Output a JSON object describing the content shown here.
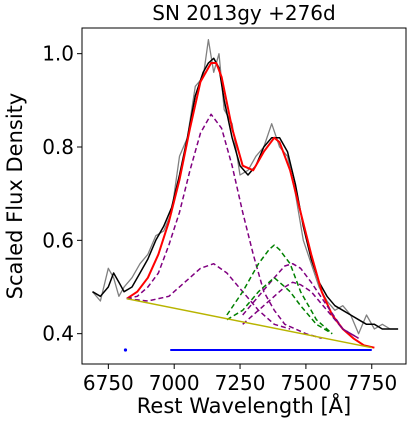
{
  "chart_data": {
    "type": "line",
    "title": "SN 2013gy  +276d",
    "xlabel": "Rest Wavelength [Å]",
    "ylabel": "Scaled Flux Density",
    "xlim": [
      6650,
      7880
    ],
    "ylim": [
      0.335,
      1.055
    ],
    "x_ticks": [
      6750,
      7000,
      7250,
      7500,
      7750
    ],
    "y_ticks": [
      0.4,
      0.6,
      0.8,
      1.0
    ],
    "x_tick_labels": [
      "6750",
      "7000",
      "7250",
      "7500",
      "7750"
    ],
    "y_tick_labels": [
      "0.4",
      "0.6",
      "0.8",
      "1.0"
    ],
    "grid": false,
    "series": [
      {
        "role": "observed spectrum (raw)",
        "color": "#808080",
        "x": [
          6690,
          6720,
          6750,
          6770,
          6790,
          6810,
          6840,
          6870,
          6900,
          6930,
          6960,
          6990,
          7020,
          7050,
          7080,
          7110,
          7130,
          7150,
          7170,
          7190,
          7220,
          7250,
          7280,
          7310,
          7340,
          7370,
          7400,
          7430,
          7460,
          7490,
          7520,
          7550,
          7580,
          7610,
          7640,
          7670,
          7700,
          7730,
          7760,
          7790,
          7820,
          7850
        ],
        "y": [
          0.49,
          0.47,
          0.54,
          0.52,
          0.48,
          0.5,
          0.52,
          0.55,
          0.57,
          0.61,
          0.62,
          0.66,
          0.78,
          0.82,
          0.93,
          0.95,
          1.03,
          0.96,
          1.0,
          0.88,
          0.85,
          0.74,
          0.75,
          0.78,
          0.8,
          0.85,
          0.8,
          0.78,
          0.7,
          0.6,
          0.55,
          0.5,
          0.47,
          0.45,
          0.46,
          0.44,
          0.4,
          0.44,
          0.41,
          0.42,
          0.41,
          0.41
        ]
      },
      {
        "role": "observed spectrum (smoothed)",
        "color": "#000000",
        "x": [
          6690,
          6720,
          6750,
          6770,
          6790,
          6810,
          6840,
          6870,
          6900,
          6930,
          6960,
          6990,
          7020,
          7050,
          7080,
          7110,
          7130,
          7150,
          7170,
          7190,
          7220,
          7250,
          7280,
          7310,
          7340,
          7370,
          7400,
          7430,
          7460,
          7490,
          7520,
          7550,
          7580,
          7610,
          7640,
          7670,
          7700,
          7730,
          7760,
          7790,
          7820,
          7850
        ],
        "y": [
          0.49,
          0.48,
          0.5,
          0.53,
          0.51,
          0.49,
          0.5,
          0.53,
          0.56,
          0.6,
          0.63,
          0.67,
          0.74,
          0.82,
          0.91,
          0.96,
          0.98,
          0.99,
          0.97,
          0.9,
          0.82,
          0.76,
          0.74,
          0.76,
          0.8,
          0.82,
          0.82,
          0.79,
          0.72,
          0.63,
          0.56,
          0.51,
          0.48,
          0.46,
          0.45,
          0.44,
          0.43,
          0.42,
          0.42,
          0.41,
          0.41,
          0.41
        ]
      },
      {
        "role": "total fit",
        "color": "#ff0000",
        "x": [
          6820,
          6860,
          6900,
          6940,
          6980,
          7020,
          7060,
          7100,
          7140,
          7160,
          7180,
          7220,
          7260,
          7300,
          7340,
          7380,
          7400,
          7440,
          7480,
          7520,
          7560,
          7600,
          7640,
          7680,
          7720,
          7760
        ],
        "y": [
          0.475,
          0.49,
          0.52,
          0.57,
          0.64,
          0.73,
          0.84,
          0.94,
          0.98,
          0.98,
          0.95,
          0.84,
          0.76,
          0.75,
          0.79,
          0.82,
          0.81,
          0.75,
          0.66,
          0.57,
          0.49,
          0.44,
          0.41,
          0.39,
          0.375,
          0.37
        ]
      },
      {
        "role": "component (purple, large)",
        "color": "#800080",
        "x": [
          6820,
          6860,
          6900,
          6940,
          6980,
          7020,
          7060,
          7100,
          7140,
          7180,
          7220,
          7260,
          7300,
          7340,
          7380,
          7420,
          7460,
          7500,
          7560
        ],
        "y": [
          0.475,
          0.48,
          0.5,
          0.53,
          0.59,
          0.66,
          0.75,
          0.83,
          0.87,
          0.84,
          0.76,
          0.66,
          0.57,
          0.49,
          0.45,
          0.42,
          0.41,
          0.4,
          0.39
        ]
      },
      {
        "role": "component (purple, small left)",
        "color": "#800080",
        "x": [
          6820,
          6900,
          6980,
          7040,
          7100,
          7150,
          7200,
          7260,
          7320,
          7380,
          7440
        ],
        "y": [
          0.475,
          0.47,
          0.48,
          0.51,
          0.54,
          0.55,
          0.53,
          0.49,
          0.45,
          0.42,
          0.41
        ]
      },
      {
        "role": "component (purple, right)",
        "color": "#800080",
        "x": [
          7260,
          7320,
          7380,
          7420,
          7450,
          7480,
          7520,
          7580,
          7640,
          7700
        ],
        "y": [
          0.44,
          0.48,
          0.52,
          0.545,
          0.55,
          0.54,
          0.51,
          0.46,
          0.41,
          0.39
        ]
      },
      {
        "role": "component (purple, right small)",
        "color": "#800080",
        "x": [
          7260,
          7320,
          7380,
          7420,
          7450,
          7480,
          7520,
          7580,
          7640,
          7700
        ],
        "y": [
          0.42,
          0.45,
          0.48,
          0.5,
          0.51,
          0.505,
          0.49,
          0.45,
          0.41,
          0.39
        ]
      },
      {
        "role": "component (green, large)",
        "color": "#008000",
        "x": [
          7200,
          7260,
          7320,
          7360,
          7380,
          7400,
          7440,
          7480,
          7540,
          7600
        ],
        "y": [
          0.44,
          0.49,
          0.55,
          0.58,
          0.59,
          0.58,
          0.55,
          0.49,
          0.43,
          0.4
        ]
      },
      {
        "role": "component (green, small)",
        "color": "#008000",
        "x": [
          7200,
          7260,
          7320,
          7360,
          7380,
          7400,
          7440,
          7480,
          7540,
          7600
        ],
        "y": [
          0.43,
          0.45,
          0.49,
          0.51,
          0.52,
          0.51,
          0.49,
          0.46,
          0.42,
          0.4
        ]
      },
      {
        "role": "continuum",
        "color": "#b8b400",
        "x": [
          6820,
          7750
        ],
        "y": [
          0.475,
          0.37
        ]
      }
    ],
    "markers": {
      "color": "#0000ff",
      "point": {
        "x": 6815,
        "y": 0.365
      },
      "segment": {
        "x": [
          6985,
          7750
        ],
        "y": 0.365
      }
    }
  }
}
